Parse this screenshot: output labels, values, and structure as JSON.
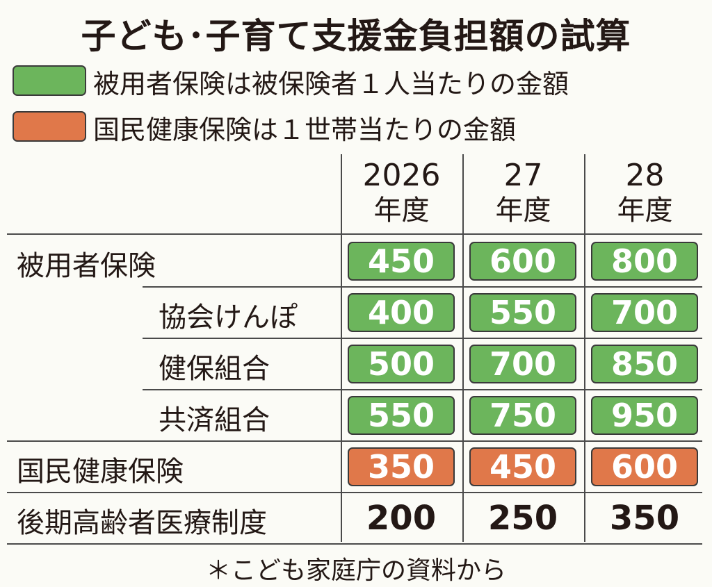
{
  "title": "子ども･子育て支援金負担額の試算",
  "legend": [
    {
      "label": "被用者保険は被保険者１人当たりの金額",
      "color": "#6cb55c"
    },
    {
      "label": "国民健康保険は１世帯当たりの金額",
      "color": "#e0784a"
    }
  ],
  "table": {
    "columns": [
      {
        "year": "2026",
        "unit": "年度"
      },
      {
        "year": "27",
        "unit": "年度"
      },
      {
        "year": "28",
        "unit": "年度"
      }
    ],
    "rows": [
      {
        "label": "被用者保険",
        "indent": false,
        "color": "#6cb55c",
        "values": [
          "450",
          "600",
          "800"
        ]
      },
      {
        "label": "協会けんぽ",
        "indent": true,
        "color": "#6cb55c",
        "values": [
          "400",
          "550",
          "700"
        ]
      },
      {
        "label": "健保組合",
        "indent": true,
        "color": "#6cb55c",
        "values": [
          "500",
          "700",
          "850"
        ]
      },
      {
        "label": "共済組合",
        "indent": true,
        "color": "#6cb55c",
        "values": [
          "550",
          "750",
          "950"
        ]
      },
      {
        "label": "国民健康保険",
        "indent": false,
        "color": "#e0784a",
        "values": [
          "350",
          "450",
          "600"
        ]
      },
      {
        "label": "後期高齢者医療制度",
        "indent": false,
        "color": null,
        "values": [
          "200",
          "250",
          "350"
        ]
      }
    ]
  },
  "note": "＊こども家庭庁の資料から"
}
